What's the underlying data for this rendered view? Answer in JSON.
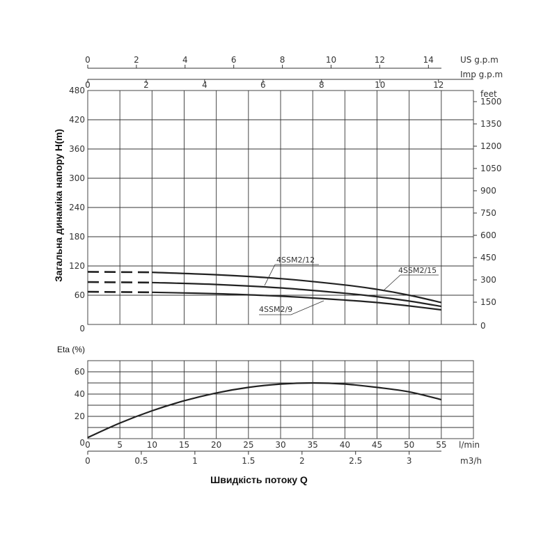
{
  "chart_data": [
    {
      "type": "line",
      "name": "head-chart",
      "ylabel": "Загальна динаміка напору H(m)",
      "x_unit": "l/min",
      "xlim": [
        0,
        60
      ],
      "ylim": [
        0,
        480
      ],
      "y_ticks": [
        0,
        60,
        120,
        180,
        240,
        300,
        360,
        420,
        480
      ],
      "right_axis": {
        "unit": "feet",
        "ticks": [
          0,
          150,
          300,
          450,
          600,
          750,
          900,
          1050,
          1200,
          1350,
          1500
        ]
      },
      "top_axes": [
        {
          "unit": "US g.p.m",
          "ticks": [
            0,
            2,
            4,
            6,
            8,
            10,
            12,
            14
          ]
        },
        {
          "unit": "Imp g.p.m",
          "ticks": [
            0,
            2,
            4,
            6,
            8,
            10,
            12
          ]
        }
      ],
      "dashed_segment": [
        0,
        10
      ],
      "series": [
        {
          "name": "4SSM2/15",
          "x": [
            0,
            10,
            20,
            30,
            40,
            45,
            50,
            55
          ],
          "y": [
            108,
            107,
            102,
            94,
            81,
            72,
            60,
            45
          ]
        },
        {
          "name": "4SSM2/12",
          "x": [
            0,
            10,
            20,
            30,
            40,
            45,
            50,
            55
          ],
          "y": [
            87,
            86,
            82,
            75,
            64,
            57,
            48,
            37
          ]
        },
        {
          "name": "4SSM2/9",
          "x": [
            0,
            10,
            20,
            30,
            40,
            45,
            50,
            55
          ],
          "y": [
            67,
            66,
            63,
            58,
            50,
            45,
            38,
            30
          ]
        }
      ]
    },
    {
      "type": "line",
      "name": "efficiency-chart",
      "ylabel": "Eta (%)",
      "xlabel": "Швидкість потоку Q",
      "xlim": [
        0,
        60
      ],
      "ylim": [
        0,
        70
      ],
      "y_ticks": [
        0,
        20,
        40,
        60
      ],
      "x_ticks": [
        0,
        5,
        10,
        15,
        20,
        25,
        30,
        35,
        40,
        45,
        50,
        55
      ],
      "x_unit": "l/min",
      "secondary_x": {
        "unit": "m3/h",
        "ticks": [
          "0",
          "0.5",
          "1",
          "1.5",
          "2",
          "2.5",
          "3"
        ]
      },
      "series": [
        {
          "x": [
            0,
            5,
            10,
            15,
            20,
            25,
            30,
            35,
            40,
            45,
            50,
            55
          ],
          "y": [
            1,
            14,
            25,
            34,
            41,
            46,
            49,
            50,
            49,
            46,
            42,
            35
          ]
        }
      ]
    }
  ]
}
